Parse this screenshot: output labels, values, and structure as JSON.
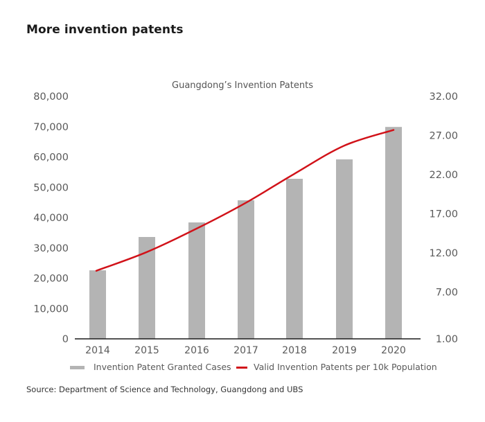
{
  "header": {
    "title": "More invention patents"
  },
  "footer": {
    "source": "Source: Department of Science and Technology, Guangdong and UBS"
  },
  "colors": {
    "bar": "#b4b4b4",
    "line": "#d11219",
    "axis": "#1a1a1a"
  },
  "chart_data": {
    "type": "bar+line",
    "title": "Guangdong’s Invention Patents",
    "categories": [
      "2014",
      "2015",
      "2016",
      "2017",
      "2018",
      "2019",
      "2020"
    ],
    "series": [
      {
        "name": "Invention Patent Granted Cases",
        "type": "bar",
        "axis": "left",
        "values": [
          22600,
          33600,
          38400,
          45700,
          52800,
          59200,
          69900
        ]
      },
      {
        "name": "Valid Invention Patents per 10k Population",
        "type": "line",
        "axis": "right",
        "values": [
          9.7,
          12.1,
          15.1,
          18.4,
          22.1,
          25.7,
          27.7
        ]
      }
    ],
    "y_left": {
      "range": [
        0,
        80000
      ],
      "ticks": [
        "0",
        "10,000",
        "20,000",
        "30,000",
        "40,000",
        "50,000",
        "60,000",
        "70,000",
        "80,000"
      ],
      "tick_values": [
        0,
        10000,
        20000,
        30000,
        40000,
        50000,
        60000,
        70000,
        80000
      ]
    },
    "y_right": {
      "range": [
        1,
        32
      ],
      "ticks": [
        "1.00",
        "7.00",
        "12.00",
        "17.00",
        "22.00",
        "27.00",
        "32.00"
      ],
      "tick_values": [
        1,
        7,
        12,
        17,
        22,
        27,
        32
      ]
    },
    "xlabel": "",
    "grid": false,
    "legend": {
      "position": "bottom"
    }
  }
}
